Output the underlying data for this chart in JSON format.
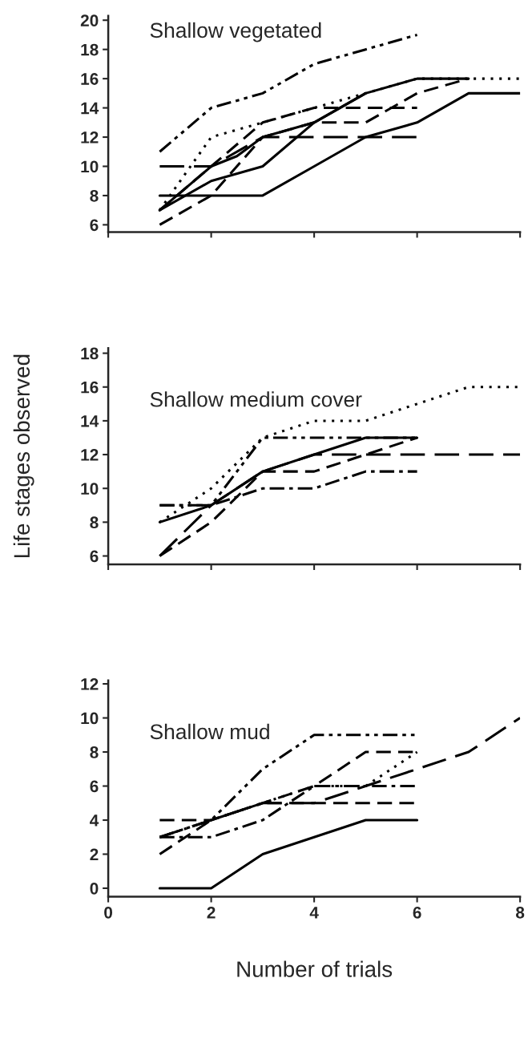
{
  "chart_data": [
    {
      "type": "line",
      "title": "Shallow vegetated",
      "xlim": [
        0,
        8
      ],
      "ylim": [
        5.5,
        20.3
      ],
      "yticks": [
        6,
        8,
        10,
        12,
        14,
        16,
        18,
        20
      ],
      "xticks": [
        0,
        2,
        4,
        6,
        8
      ],
      "tick_labels": "y",
      "series": [
        {
          "color": "#000000",
          "line_style": "dashdotdot",
          "x": [
            1,
            2,
            3,
            4,
            5,
            6
          ],
          "values": [
            11,
            14,
            15,
            17,
            18,
            19
          ]
        },
        {
          "color": "#000000",
          "line_style": "dotted",
          "x": [
            1,
            2,
            3,
            4,
            5,
            6,
            7,
            8
          ],
          "values": [
            7,
            12,
            13,
            14,
            15,
            16,
            16,
            16
          ]
        },
        {
          "color": "#000000",
          "line_style": "solid",
          "x": [
            1,
            2,
            3,
            4,
            5,
            6,
            7
          ],
          "values": [
            7,
            9,
            10,
            13,
            15,
            16,
            16
          ]
        },
        {
          "color": "#000000",
          "line_style": "solid",
          "x": [
            1,
            2,
            3,
            4,
            5,
            6,
            7,
            8
          ],
          "values": [
            8,
            8,
            8,
            10,
            12,
            13,
            15,
            15
          ]
        },
        {
          "color": "#000000",
          "line_style": "solid",
          "x": [
            1,
            2,
            2.5,
            3,
            4,
            5
          ],
          "values": [
            7,
            10,
            10.7,
            12,
            13,
            15
          ]
        },
        {
          "color": "#000000",
          "line_style": "longdash",
          "x": [
            1,
            2,
            3,
            4,
            5,
            6
          ],
          "values": [
            10,
            10,
            12,
            12,
            12,
            12
          ]
        },
        {
          "color": "#000000",
          "line_style": "dashed",
          "x": [
            1,
            2,
            3,
            4,
            5,
            6,
            7
          ],
          "values": [
            6,
            8,
            12,
            13,
            13,
            15,
            16
          ]
        },
        {
          "color": "#000000",
          "line_style": "dashed",
          "x": [
            1,
            2,
            3,
            4,
            5,
            6
          ],
          "values": [
            7,
            10,
            13,
            14,
            14,
            14
          ]
        }
      ]
    },
    {
      "type": "line",
      "title": "Shallow medium cover",
      "ylabel": "Life stages observed",
      "xlim": [
        0,
        8
      ],
      "ylim": [
        5.5,
        18.3
      ],
      "yticks": [
        6,
        8,
        10,
        12,
        14,
        16,
        18
      ],
      "xticks": [
        0,
        2,
        4,
        6,
        8
      ],
      "tick_labels": "y",
      "series": [
        {
          "color": "#000000",
          "line_style": "dotted",
          "x": [
            1,
            2,
            3,
            4,
            5,
            6,
            7,
            8
          ],
          "values": [
            8,
            10,
            13,
            14,
            14,
            15,
            16,
            16
          ]
        },
        {
          "color": "#000000",
          "line_style": "dashdotdot",
          "x": [
            1,
            2,
            3,
            4,
            5,
            6
          ],
          "values": [
            9,
            9,
            13,
            13,
            13,
            13
          ]
        },
        {
          "color": "#000000",
          "line_style": "solid",
          "x": [
            1,
            2,
            3,
            4,
            5,
            6
          ],
          "values": [
            8,
            9,
            11,
            12,
            13,
            13
          ]
        },
        {
          "color": "#000000",
          "line_style": "longdash",
          "x": [
            1,
            2,
            3,
            4,
            5,
            6,
            7,
            8
          ],
          "values": [
            6,
            9,
            11,
            12,
            12,
            12,
            12,
            12
          ]
        },
        {
          "color": "#000000",
          "line_style": "dashed",
          "x": [
            1,
            2,
            3,
            4,
            5,
            6
          ],
          "values": [
            6,
            8,
            11,
            11,
            12,
            13
          ]
        },
        {
          "color": "#000000",
          "line_style": "dashdot",
          "x": [
            1,
            2,
            3,
            4,
            5,
            6
          ],
          "values": [
            9,
            9,
            10,
            10,
            11,
            11
          ]
        }
      ]
    },
    {
      "type": "line",
      "title": "Shallow mud",
      "xlabel": "Number of trials",
      "xlim": [
        0,
        8
      ],
      "ylim": [
        -0.5,
        12.2
      ],
      "yticks": [
        0,
        2,
        4,
        6,
        8,
        10,
        12
      ],
      "xticks": [
        0,
        2,
        4,
        6,
        8
      ],
      "series": [
        {
          "color": "#000000",
          "line_style": "solid",
          "x": [
            1,
            2,
            3,
            4,
            5,
            6
          ],
          "values": [
            0,
            0,
            2,
            3,
            4,
            4
          ]
        },
        {
          "color": "#000000",
          "line_style": "dashdotdot",
          "x": [
            1,
            2,
            3,
            4,
            5,
            6
          ],
          "values": [
            3,
            4,
            7,
            9,
            9,
            9
          ]
        },
        {
          "color": "#000000",
          "line_style": "dashed",
          "x": [
            1,
            2,
            3,
            4,
            5,
            6
          ],
          "values": [
            2,
            4,
            5,
            6,
            8,
            8
          ]
        },
        {
          "color": "#000000",
          "line_style": "dotted",
          "x": [
            1,
            2,
            3,
            4,
            5,
            6
          ],
          "values": [
            3,
            4,
            5,
            6,
            6,
            8
          ]
        },
        {
          "color": "#000000",
          "line_style": "longdash",
          "x": [
            1,
            2,
            3,
            4,
            5,
            6,
            7,
            8
          ],
          "values": [
            3,
            4,
            5,
            5,
            6,
            7,
            8,
            10
          ]
        },
        {
          "color": "#000000",
          "line_style": "dashed",
          "x": [
            1,
            2,
            3,
            4,
            5,
            6
          ],
          "values": [
            4,
            4,
            5,
            5,
            5,
            5
          ]
        },
        {
          "color": "#000000",
          "line_style": "dashdot",
          "x": [
            1,
            2,
            3,
            4,
            5,
            6
          ],
          "values": [
            3,
            3,
            4,
            6,
            6,
            6
          ]
        }
      ]
    }
  ]
}
